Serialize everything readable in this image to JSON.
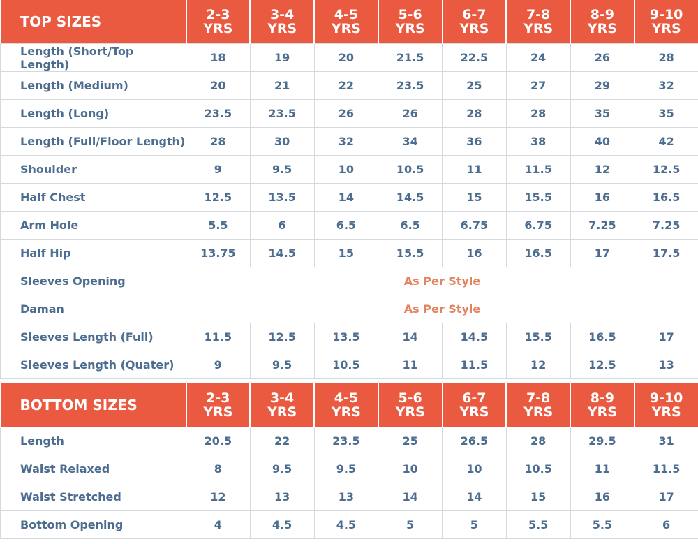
{
  "top_sizes": {
    "title": "TOP SIZES",
    "columns": [
      "2-3\nYRS",
      "3-4\nYRS",
      "4-5\nYRS",
      "5-6\nYRS",
      "6-7\nYRS",
      "7-8\nYRS",
      "8-9\nYRS",
      "9-10\nYRS"
    ],
    "rows": [
      {
        "label": "Length (Short/Top Length)",
        "values": [
          18,
          19,
          20,
          21.5,
          22.5,
          24,
          26,
          28
        ]
      },
      {
        "label": "Length (Medium)",
        "values": [
          20,
          21,
          22,
          23.5,
          25,
          27,
          29,
          32
        ]
      },
      {
        "label": "Length (Long)",
        "values": [
          23.5,
          23.5,
          26,
          26,
          28,
          28,
          35,
          35
        ]
      },
      {
        "label": "Length (Full/Floor Length)",
        "values": [
          28,
          30,
          32,
          34,
          36,
          38,
          40,
          42
        ]
      },
      {
        "label": "Shoulder",
        "values": [
          9,
          9.5,
          10,
          10.5,
          11,
          11.5,
          12,
          12.5
        ]
      },
      {
        "label": "Half Chest",
        "values": [
          12.5,
          13.5,
          14,
          14.5,
          15,
          15.5,
          16,
          16.5
        ]
      },
      {
        "label": "Arm Hole",
        "values": [
          5.5,
          6,
          6.5,
          6.5,
          6.75,
          6.75,
          7.25,
          7.25
        ]
      },
      {
        "label": "Half Hip",
        "values": [
          13.75,
          14.5,
          15,
          15.5,
          16,
          16.5,
          17,
          17.5
        ]
      },
      {
        "label": "Sleeves Opening",
        "note": "As Per Style"
      },
      {
        "label": "Daman",
        "note": "As Per Style"
      },
      {
        "label": "Sleeves Length (Full)",
        "values": [
          11.5,
          12.5,
          13.5,
          14,
          14.5,
          15.5,
          16.5,
          17
        ]
      },
      {
        "label": "Sleeves Length (Quater)",
        "values": [
          9,
          9.5,
          10.5,
          11,
          11.5,
          12,
          12.5,
          13
        ]
      }
    ]
  },
  "bottom_sizes": {
    "title": "BOTTOM SIZES",
    "columns": [
      "2-3\nYRS",
      "3-4\nYRS",
      "4-5\nYRS",
      "5-6\nYRS",
      "6-7\nYRS",
      "7-8\nYRS",
      "8-9\nYRS",
      "9-10\nYRS"
    ],
    "rows": [
      {
        "label": "Length",
        "values": [
          20.5,
          22,
          23.5,
          25,
          26.5,
          28,
          29.5,
          31
        ]
      },
      {
        "label": "Waist Relaxed",
        "values": [
          8,
          9.5,
          9.5,
          10,
          10,
          10.5,
          11,
          11.5
        ]
      },
      {
        "label": "Waist Stretched",
        "values": [
          12,
          13,
          13,
          14,
          14,
          15,
          16,
          17
        ]
      },
      {
        "label": "Bottom Opening",
        "values": [
          4,
          4.5,
          4.5,
          5,
          5,
          5.5,
          5.5,
          6
        ]
      }
    ]
  }
}
